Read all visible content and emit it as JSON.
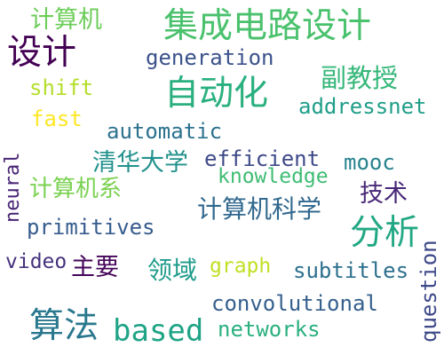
{
  "words": [
    {
      "text": "计算机",
      "color": "#6ccd59"
    },
    {
      "text": "集成电路设计",
      "color": "#4ac16d"
    },
    {
      "text": "设计",
      "color": "#440154"
    },
    {
      "text": "generation",
      "color": "#3b528b"
    },
    {
      "text": "shift",
      "color": "#b5de2b"
    },
    {
      "text": "自动化",
      "color": "#2ab07f"
    },
    {
      "text": "副教授",
      "color": "#35b779"
    },
    {
      "text": "addressnet",
      "color": "#1f9e89"
    },
    {
      "text": "fast",
      "color": "#fde725"
    },
    {
      "text": "automatic",
      "color": "#2c728e"
    },
    {
      "text": "neural",
      "color": "#482475"
    },
    {
      "text": "清华大学",
      "color": "#21918c"
    },
    {
      "text": "efficient",
      "color": "#3e4a89"
    },
    {
      "text": "mooc",
      "color": "#26828e"
    },
    {
      "text": "knowledge",
      "color": "#3fbc73"
    },
    {
      "text": "计算机系",
      "color": "#7ad151"
    },
    {
      "text": "技术",
      "color": "#482878"
    },
    {
      "text": "计算机科学",
      "color": "#31688e"
    },
    {
      "text": "分析",
      "color": "#22a884"
    },
    {
      "text": "primitives",
      "color": "#365c8d"
    },
    {
      "text": "question",
      "color": "#3e4989"
    },
    {
      "text": "video",
      "color": "#46327e"
    },
    {
      "text": "主要",
      "color": "#450559"
    },
    {
      "text": "领域",
      "color": "#1e9b8a"
    },
    {
      "text": "graph",
      "color": "#c2df23"
    },
    {
      "text": "subtitles",
      "color": "#2d708e"
    },
    {
      "text": "convolutional",
      "color": "#355f8d"
    },
    {
      "text": "算法",
      "color": "#2a788e"
    },
    {
      "text": "based",
      "color": "#20a486"
    },
    {
      "text": "networks",
      "color": "#2ab07f"
    }
  ]
}
